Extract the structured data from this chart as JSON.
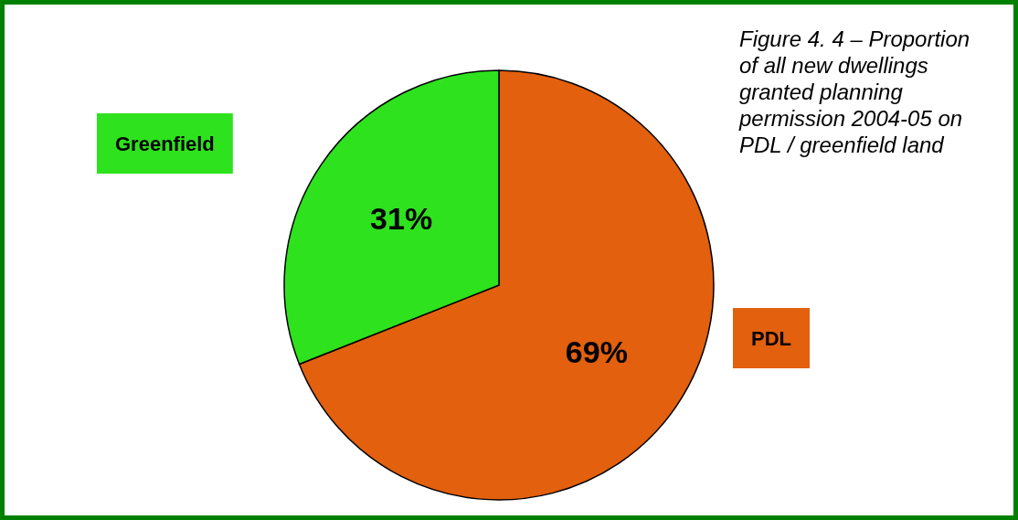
{
  "chart_data": {
    "type": "pie",
    "title": "Figure 4. 4 – Proportion of all new dwellings granted planning permission 2004-05 on PDL / greenfield land",
    "categories": [
      "PDL",
      "Greenfield"
    ],
    "values": [
      69,
      31
    ],
    "value_labels": [
      "69%",
      "31%"
    ],
    "colors": [
      "#e2600e",
      "#2ee21e"
    ]
  }
}
